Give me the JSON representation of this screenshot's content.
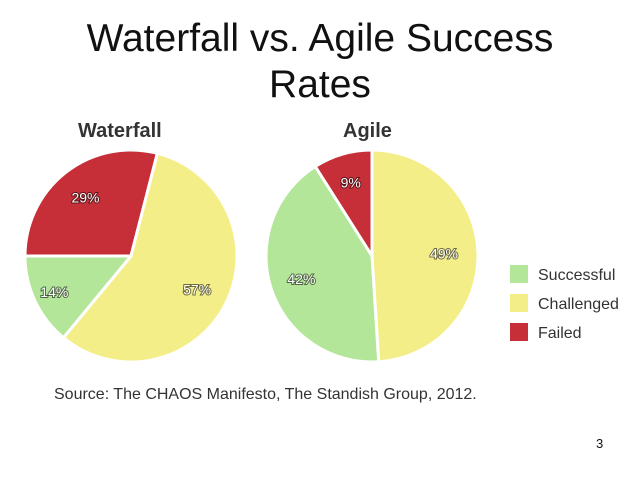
{
  "slide": {
    "title_line1": "Waterfall vs. Agile Success",
    "title_line2": "Rates",
    "source": "Source: The CHAOS Manifesto, The Standish Group, 2012.",
    "page_number": "3"
  },
  "colors": {
    "Successful": "#b3e699",
    "Challenged": "#f4ee88",
    "Failed": "#c72f38",
    "slice_stroke": "#ffffff"
  },
  "chart_data": [
    {
      "type": "pie",
      "title": "Waterfall",
      "slices": [
        {
          "label": "Failed",
          "value": 29,
          "text": "29%"
        },
        {
          "label": "Challenged",
          "value": 57,
          "text": "57%"
        },
        {
          "label": "Successful",
          "value": 14,
          "text": "14%"
        }
      ],
      "legend": "right"
    },
    {
      "type": "pie",
      "title": "Agile",
      "slices": [
        {
          "label": "Failed",
          "value": 9,
          "text": "9%"
        },
        {
          "label": "Challenged",
          "value": 49,
          "text": "49%"
        },
        {
          "label": "Successful",
          "value": 42,
          "text": "42%"
        }
      ],
      "legend": "right"
    }
  ],
  "legend": {
    "items": [
      "Successful",
      "Challenged",
      "Failed"
    ]
  }
}
